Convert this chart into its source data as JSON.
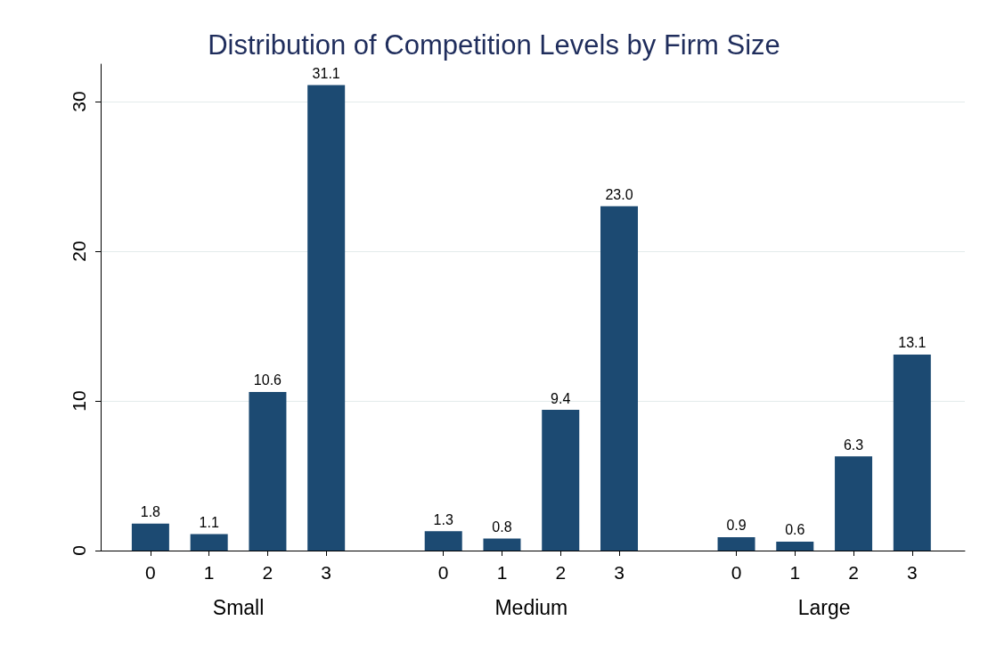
{
  "chart_data": {
    "type": "bar",
    "title": "Distribution of Competition Levels by Firm Size",
    "categories": [
      "0",
      "1",
      "2",
      "3",
      "0",
      "1",
      "2",
      "3",
      "0",
      "1",
      "2",
      "3"
    ],
    "values": [
      1.8,
      1.1,
      10.6,
      31.1,
      1.3,
      0.8,
      9.4,
      23.0,
      0.9,
      0.6,
      6.3,
      13.1
    ],
    "value_labels": [
      "1.8",
      "1.1",
      "10.6",
      "31.1",
      "1.3",
      "0.8",
      "9.4",
      "23.0",
      "0.9",
      "0.6",
      "6.3",
      "13.1"
    ],
    "color": "#1c4a72",
    "annotations": [
      "Small",
      "Medium",
      "Large"
    ],
    "ylim": [
      0,
      32.5
    ],
    "yticks": [
      0,
      10,
      20,
      30
    ],
    "grid": "y"
  }
}
